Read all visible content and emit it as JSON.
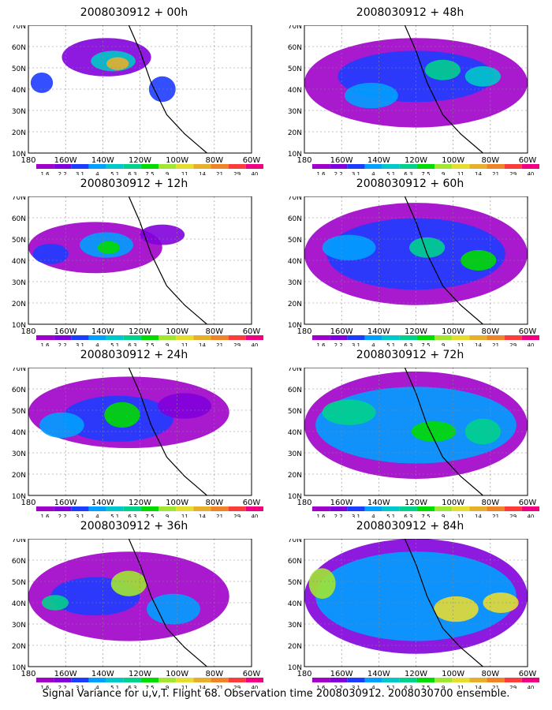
{
  "footer": "Signal Variance for u,v,T. Flight 68. Observation time 2008030912. 2008030700 ensemble.",
  "lon_labels": [
    "180",
    "160W",
    "140W",
    "120W",
    "100W",
    "80W",
    "60W"
  ],
  "lat_labels": [
    "70N",
    "60N",
    "50N",
    "40N",
    "30N",
    "20N",
    "10N"
  ],
  "colorbar": {
    "levels": [
      "1.6",
      "2.2",
      "3.1",
      "4",
      "5.1",
      "6.3",
      "7.5",
      "9",
      "11",
      "14",
      "21",
      "29",
      "40"
    ],
    "colors": [
      "#a000c8",
      "#8200dc",
      "#1e3cff",
      "#00a0ff",
      "#00c8c8",
      "#00d28c",
      "#00dc00",
      "#a0e632",
      "#e6dc32",
      "#e6af2d",
      "#f08228",
      "#fa3c3c",
      "#f00082"
    ]
  },
  "chart_data": [
    {
      "type": "heatmap",
      "title": "2008030912 + 00h",
      "x_range": [
        "180",
        "60W"
      ],
      "y_range": [
        "10N",
        "70N"
      ],
      "grid": true
    },
    {
      "type": "heatmap",
      "title": "2008030912 + 12h",
      "x_range": [
        "180",
        "60W"
      ],
      "y_range": [
        "10N",
        "70N"
      ],
      "grid": true
    },
    {
      "type": "heatmap",
      "title": "2008030912 + 24h",
      "x_range": [
        "180",
        "60W"
      ],
      "y_range": [
        "10N",
        "70N"
      ],
      "grid": true
    },
    {
      "type": "heatmap",
      "title": "2008030912 + 36h",
      "x_range": [
        "180",
        "60W"
      ],
      "y_range": [
        "10N",
        "70N"
      ],
      "grid": true
    },
    {
      "type": "heatmap",
      "title": "2008030912 + 48h",
      "x_range": [
        "180",
        "60W"
      ],
      "y_range": [
        "10N",
        "70N"
      ],
      "grid": true
    },
    {
      "type": "heatmap",
      "title": "2008030912 + 60h",
      "x_range": [
        "180",
        "60W"
      ],
      "y_range": [
        "10N",
        "70N"
      ],
      "grid": true
    },
    {
      "type": "heatmap",
      "title": "2008030912 + 72h",
      "x_range": [
        "180",
        "60W"
      ],
      "y_range": [
        "10N",
        "70N"
      ],
      "grid": true
    },
    {
      "type": "heatmap",
      "title": "2008030912 + 84h",
      "x_range": [
        "180",
        "60W"
      ],
      "y_range": [
        "10N",
        "70N"
      ],
      "grid": true
    }
  ]
}
